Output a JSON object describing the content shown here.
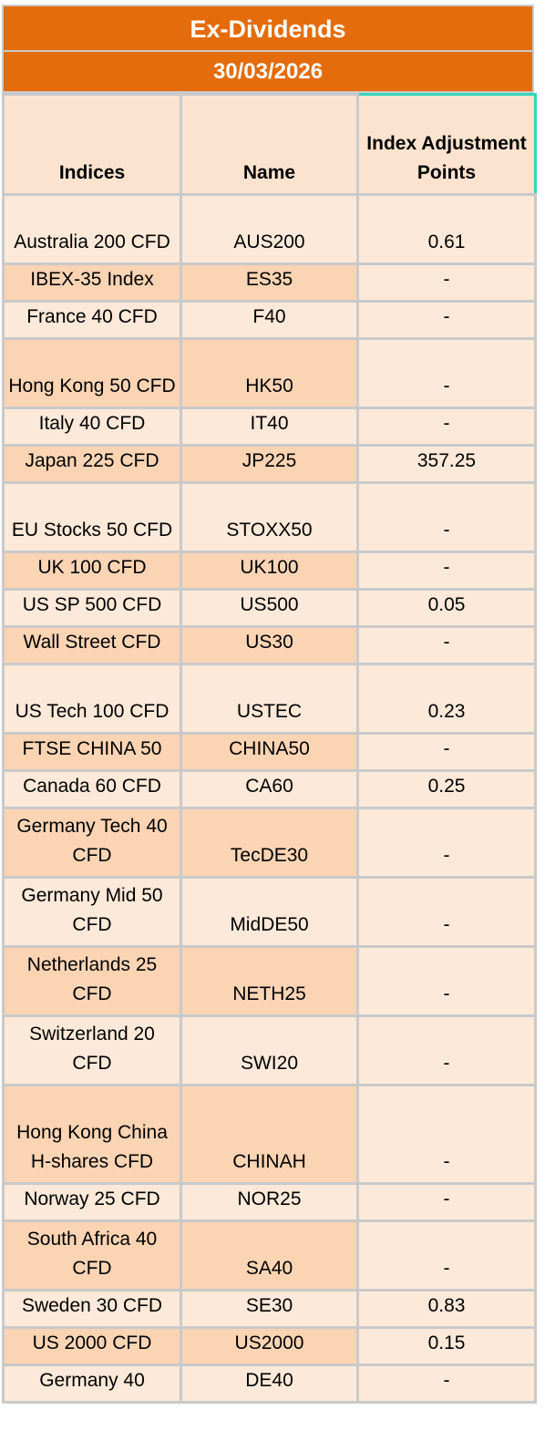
{
  "title": "Ex-Dividends",
  "date": "30/03/2026",
  "headers": {
    "indices": "Indices",
    "name": "Name",
    "adjustment": "Index Adjustment Points"
  },
  "rows": [
    {
      "index": "Australia 200 CFD",
      "name": "AUS200",
      "points": "0.61"
    },
    {
      "index": "IBEX-35 Index",
      "name": "ES35",
      "points": "-"
    },
    {
      "index": "France 40 CFD",
      "name": "F40",
      "points": "-"
    },
    {
      "index": "Hong Kong 50 CFD",
      "name": "HK50",
      "points": "-"
    },
    {
      "index": "Italy 40 CFD",
      "name": "IT40",
      "points": "-"
    },
    {
      "index": "Japan 225 CFD",
      "name": "JP225",
      "points": "357.25"
    },
    {
      "index": "EU Stocks 50 CFD",
      "name": "STOXX50",
      "points": "-"
    },
    {
      "index": "UK 100 CFD",
      "name": "UK100",
      "points": "-"
    },
    {
      "index": "US SP 500 CFD",
      "name": "US500",
      "points": "0.05"
    },
    {
      "index": "Wall Street CFD",
      "name": "US30",
      "points": "-"
    },
    {
      "index": "US Tech 100 CFD",
      "name": "USTEC",
      "points": "0.23"
    },
    {
      "index": "FTSE CHINA 50",
      "name": "CHINA50",
      "points": "-"
    },
    {
      "index": "Canada 60 CFD",
      "name": "CA60",
      "points": "0.25"
    },
    {
      "index": "Germany Tech 40 CFD",
      "name": "TecDE30",
      "points": "-"
    },
    {
      "index": "Germany Mid 50 CFD",
      "name": "MidDE50",
      "points": "-"
    },
    {
      "index": "Netherlands 25 CFD",
      "name": "NETH25",
      "points": "-"
    },
    {
      "index": "Switzerland 20 CFD",
      "name": "SWI20",
      "points": "-"
    },
    {
      "index": "Hong Kong China H-shares CFD",
      "name": "CHINAH",
      "points": "-"
    },
    {
      "index": "Norway 25 CFD",
      "name": "NOR25",
      "points": "-"
    },
    {
      "index": "South Africa 40 CFD",
      "name": "SA40",
      "points": "-"
    },
    {
      "index": "Sweden 30 CFD",
      "name": "SE30",
      "points": "0.83"
    },
    {
      "index": "US 2000 CFD",
      "name": "US2000",
      "points": "0.15"
    },
    {
      "index": "Germany 40",
      "name": "DE40",
      "points": "-"
    }
  ]
}
